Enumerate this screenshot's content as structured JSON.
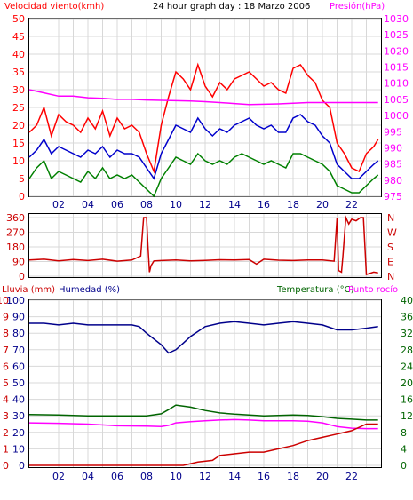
{
  "chart_data": [
    {
      "type": "line",
      "title": "24 hour graph day : 18 Marzo 2006",
      "left_axis_label": "Velocidad viento(kmh)",
      "right_axis_label": "Presión(hPa)",
      "x_ticks": [
        "02",
        "04",
        "06",
        "08",
        "10",
        "12",
        "14",
        "16",
        "18",
        "20",
        "22"
      ],
      "xlim": [
        0,
        24
      ],
      "left_ylim": [
        0,
        50
      ],
      "left_ticks": [
        "0",
        "5",
        "10",
        "15",
        "20",
        "25",
        "30",
        "35",
        "40",
        "45",
        "50"
      ],
      "right_ylim": [
        975,
        1030
      ],
      "right_ticks": [
        "975",
        "980",
        "985",
        "990",
        "995",
        "1000",
        "1005",
        "1010",
        "1015",
        "1020",
        "1025",
        "1030"
      ],
      "grid": true,
      "colors": {
        "gust": "#ff0000",
        "avg": "#0000cc",
        "low": "#008000",
        "pressure": "#ff00ff"
      },
      "series": [
        {
          "key": "gust",
          "axis": "left",
          "x": [
            0,
            0.5,
            1,
            1.5,
            2,
            2.5,
            3,
            3.5,
            4,
            4.5,
            5,
            5.5,
            6,
            6.5,
            7,
            7.5,
            8,
            8.5,
            9,
            9.5,
            10,
            10.5,
            11,
            11.5,
            12,
            12.5,
            13,
            13.5,
            14,
            14.5,
            15,
            15.5,
            16,
            16.5,
            17,
            17.5,
            18,
            18.5,
            19,
            19.5,
            20,
            20.5,
            21,
            21.5,
            22,
            22.5,
            23,
            23.5,
            23.8
          ],
          "y": [
            18,
            20,
            25,
            17,
            23,
            21,
            20,
            18,
            22,
            19,
            24,
            17,
            22,
            19,
            20,
            18,
            12,
            7,
            20,
            28,
            35,
            33,
            30,
            37,
            31,
            28,
            32,
            30,
            33,
            34,
            35,
            33,
            31,
            32,
            30,
            29,
            36,
            37,
            34,
            32,
            27,
            25,
            15,
            12,
            8,
            7,
            12,
            14,
            16
          ]
        },
        {
          "key": "avg",
          "axis": "left",
          "x": [
            0,
            0.5,
            1,
            1.5,
            2,
            2.5,
            3,
            3.5,
            4,
            4.5,
            5,
            5.5,
            6,
            6.5,
            7,
            7.5,
            8,
            8.5,
            9,
            9.5,
            10,
            10.5,
            11,
            11.5,
            12,
            12.5,
            13,
            13.5,
            14,
            14.5,
            15,
            15.5,
            16,
            16.5,
            17,
            17.5,
            18,
            18.5,
            19,
            19.5,
            20,
            20.5,
            21,
            21.5,
            22,
            22.5,
            23,
            23.5,
            23.8
          ],
          "y": [
            11,
            13,
            16,
            12,
            14,
            13,
            12,
            11,
            13,
            12,
            14,
            11,
            13,
            12,
            12,
            11,
            8,
            5,
            12,
            16,
            20,
            19,
            18,
            22,
            19,
            17,
            19,
            18,
            20,
            21,
            22,
            20,
            19,
            20,
            18,
            18,
            22,
            23,
            21,
            20,
            17,
            15,
            9,
            7,
            5,
            5,
            7,
            9,
            10
          ]
        },
        {
          "key": "low",
          "axis": "left",
          "x": [
            0,
            0.5,
            1,
            1.5,
            2,
            2.5,
            3,
            3.5,
            4,
            4.5,
            5,
            5.5,
            6,
            6.5,
            7,
            7.5,
            8,
            8.5,
            9,
            9.5,
            10,
            10.5,
            11,
            11.5,
            12,
            12.5,
            13,
            13.5,
            14,
            14.5,
            15,
            15.5,
            16,
            16.5,
            17,
            17.5,
            18,
            18.5,
            19,
            19.5,
            20,
            20.5,
            21,
            21.5,
            22,
            22.5,
            23,
            23.5,
            23.8
          ],
          "y": [
            5,
            8,
            10,
            5,
            7,
            6,
            5,
            4,
            7,
            5,
            8,
            5,
            6,
            5,
            6,
            4,
            2,
            0,
            5,
            8,
            11,
            10,
            9,
            12,
            10,
            9,
            10,
            9,
            11,
            12,
            11,
            10,
            9,
            10,
            9,
            8,
            12,
            12,
            11,
            10,
            9,
            7,
            3,
            2,
            1,
            1,
            3,
            5,
            6
          ]
        },
        {
          "key": "pressure",
          "axis": "right",
          "x": [
            0,
            1,
            2,
            3,
            4,
            5,
            6,
            7,
            8,
            9,
            10,
            11,
            12,
            13,
            14,
            15,
            16,
            17,
            18,
            19,
            20,
            21,
            22,
            23,
            23.8
          ],
          "y": [
            1008,
            1007,
            1006,
            1006,
            1005.5,
            1005.3,
            1005,
            1005,
            1004.8,
            1004.7,
            1004.6,
            1004.5,
            1004.3,
            1004,
            1003.7,
            1003.4,
            1003.5,
            1003.6,
            1003.8,
            1004,
            1004,
            1004,
            1004,
            1004,
            1004
          ]
        }
      ]
    },
    {
      "type": "line",
      "title": "",
      "left_ticks": [
        "360",
        "270",
        "180",
        "90",
        "0"
      ],
      "right_ticks": [
        "N",
        "W",
        "S",
        "E",
        "N"
      ],
      "ylim": [
        0,
        360
      ],
      "colors": {
        "direction": "#cc0000"
      },
      "series": [
        {
          "key": "direction",
          "x": [
            0,
            1,
            2,
            3,
            4,
            5,
            6,
            7,
            7.6,
            7.8,
            8,
            8.1,
            8.2,
            8.3,
            8.5,
            9,
            10,
            11,
            12,
            13,
            14,
            15,
            15.5,
            16,
            17,
            18,
            19,
            20,
            20.8,
            21,
            21.1,
            21.3,
            21.4,
            21.6,
            21.8,
            22,
            22.3,
            22.6,
            22.8,
            23,
            23.5,
            23.8
          ],
          "y": [
            95,
            100,
            90,
            98,
            92,
            100,
            88,
            95,
            120,
            360,
            360,
            180,
            20,
            60,
            90,
            92,
            95,
            90,
            93,
            97,
            95,
            98,
            70,
            100,
            94,
            92,
            96,
            95,
            88,
            380,
            30,
            20,
            120,
            360,
            320,
            350,
            340,
            360,
            360,
            5,
            20,
            15
          ]
        }
      ]
    },
    {
      "type": "line",
      "title": "",
      "left_labels": [
        "Lluvia (mm)",
        "Humedad (%)"
      ],
      "right_labels": [
        "Temperatura (°C)",
        "Punto rocío"
      ],
      "lluvia_ticks": [
        "0",
        "1",
        "2",
        "3",
        "4",
        "5",
        "6",
        "7",
        "8",
        "9",
        "10"
      ],
      "humedad_ticks": [
        "0",
        "10",
        "20",
        "30",
        "40",
        "50",
        "60",
        "70",
        "80",
        "90",
        "100"
      ],
      "temp_ticks": [
        "0",
        "4",
        "8",
        "12",
        "16",
        "20",
        "24",
        "28",
        "32",
        "36",
        "40"
      ],
      "x_ticks": [
        "02",
        "04",
        "06",
        "08",
        "10",
        "12",
        "14",
        "16",
        "18",
        "20",
        "22"
      ],
      "colors": {
        "humidity": "#00008b",
        "temperature": "#006400",
        "dewpoint": "#ff00ff",
        "rain": "#cc0000"
      },
      "series": [
        {
          "key": "humidity",
          "axis": "humedad",
          "ylim": [
            0,
            100
          ],
          "x": [
            0,
            1,
            2,
            3,
            4,
            5,
            6,
            7,
            7.5,
            8,
            9,
            9.5,
            10,
            10.5,
            11,
            12,
            13,
            14,
            15,
            16,
            17,
            18,
            19,
            20,
            21,
            22,
            23,
            23.8
          ],
          "y": [
            86,
            86,
            85,
            86,
            85,
            85,
            85,
            85,
            84,
            80,
            73,
            68,
            70,
            74,
            78,
            84,
            86,
            87,
            86,
            85,
            86,
            87,
            86,
            85,
            82,
            82,
            83,
            84
          ]
        },
        {
          "key": "temperature",
          "axis": "temp",
          "ylim": [
            0,
            40
          ],
          "x": [
            0,
            2,
            4,
            6,
            8,
            9,
            9.5,
            10,
            11,
            12,
            13,
            14,
            15,
            16,
            17,
            18,
            19,
            20,
            21,
            22,
            23,
            23.8
          ],
          "y": [
            12.3,
            12.2,
            12,
            12,
            12,
            12.5,
            13.5,
            14.6,
            14.1,
            13.3,
            12.7,
            12.4,
            12.2,
            12,
            12.1,
            12.2,
            12.1,
            11.8,
            11.4,
            11.2,
            11,
            11
          ]
        },
        {
          "key": "dewpoint",
          "axis": "temp",
          "ylim": [
            0,
            40
          ],
          "x": [
            0,
            2,
            4,
            6,
            8,
            9,
            9.5,
            10,
            11,
            12,
            13,
            14,
            15,
            16,
            17,
            18,
            19,
            20,
            21,
            22,
            23,
            23.8
          ],
          "y": [
            10.3,
            10.2,
            10,
            9.6,
            9.5,
            9.4,
            9.7,
            10.3,
            10.6,
            10.8,
            11,
            11.1,
            11,
            10.8,
            10.8,
            10.8,
            10.7,
            10.3,
            9.4,
            9,
            8.9,
            8.9
          ]
        },
        {
          "key": "rain",
          "axis": "lluvia",
          "ylim": [
            0,
            10
          ],
          "x": [
            0,
            10.5,
            11.5,
            12.5,
            13,
            14,
            15,
            16,
            17,
            18,
            19,
            20,
            21,
            22,
            23,
            23.8
          ],
          "y": [
            0,
            0,
            0.2,
            0.3,
            0.6,
            0.7,
            0.8,
            0.8,
            1,
            1.2,
            1.5,
            1.7,
            1.9,
            2.1,
            2.5,
            2.5
          ]
        }
      ]
    }
  ]
}
